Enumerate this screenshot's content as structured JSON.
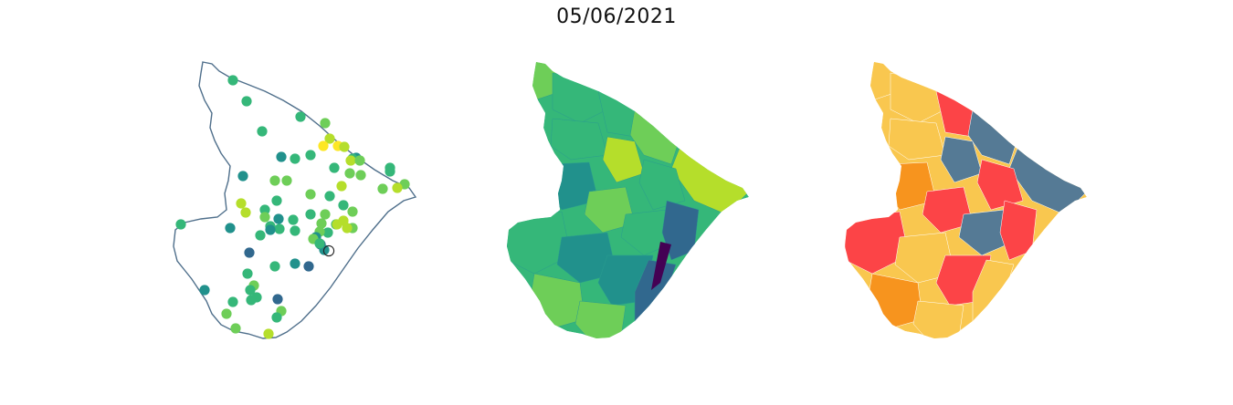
{
  "figure": {
    "title": "05/06/2021"
  },
  "colors": {
    "outline": "#4f6f8b",
    "viridis": [
      "#440154",
      "#31688e",
      "#21918c",
      "#35b779",
      "#6ece58",
      "#b5de2b",
      "#fde725"
    ],
    "classes": [
      "#fc4447",
      "#f7941e",
      "#f9c74f",
      "#557a95"
    ]
  },
  "panels": [
    {
      "name": "point-map",
      "type": "scatter-map"
    },
    {
      "name": "choropleth-continuous",
      "type": "choropleth"
    },
    {
      "name": "choropleth-classified",
      "type": "choropleth"
    }
  ]
}
